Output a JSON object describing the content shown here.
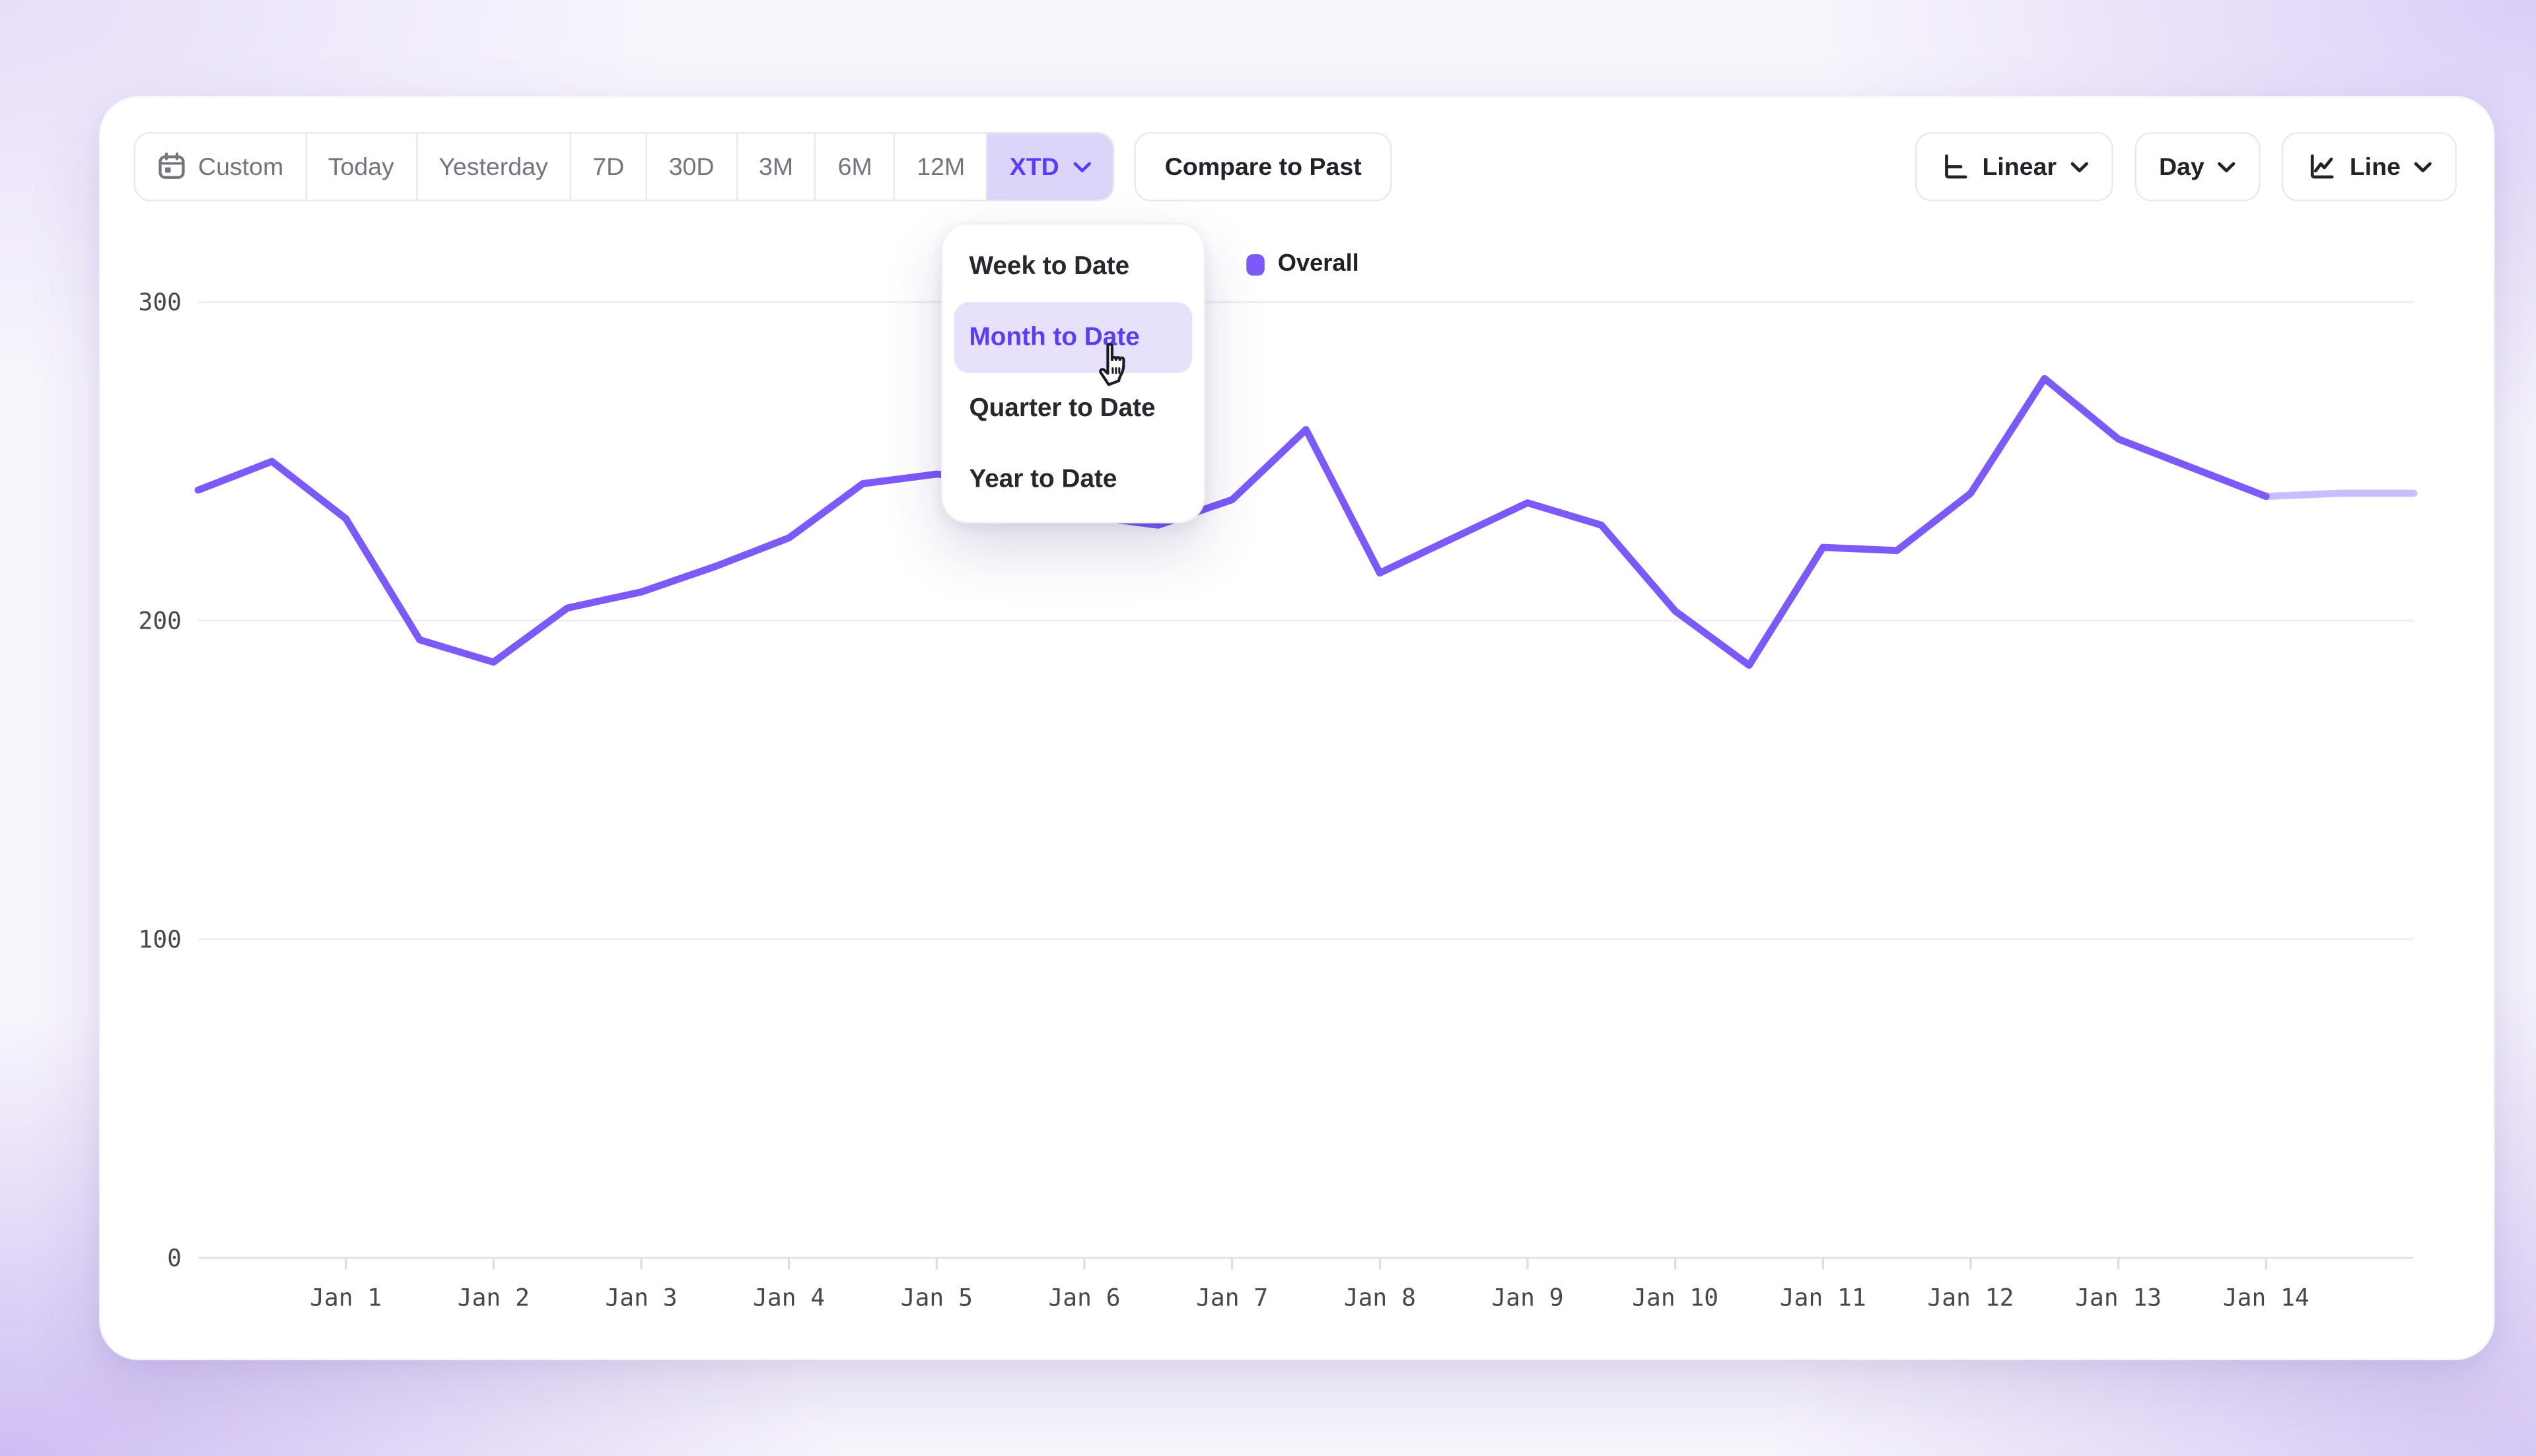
{
  "colors": {
    "accent": "#7b5af9",
    "accent_strong": "#5b3df2",
    "selected_preset_bg": "#ddd4f9",
    "menu_highlight_bg": "#e8e1fc",
    "grid": "#efeff3",
    "axis": "#e4e4ea",
    "tick": "#dcdce2",
    "tick_text": "#47474f",
    "muted_text": "#74747e",
    "dark_text": "#222228",
    "card_bg": "#ffffff"
  },
  "toolbar": {
    "date_presets": [
      "Custom",
      "Today",
      "Yesterday",
      "7D",
      "30D",
      "3M",
      "6M",
      "12M",
      "XTD"
    ],
    "selected_preset": "XTD",
    "compare_label": "Compare to Past",
    "scale_label": "Linear",
    "granularity_label": "Day",
    "chart_type_label": "Line"
  },
  "dropdown": {
    "items": [
      "Week to Date",
      "Month to Date",
      "Quarter to Date",
      "Year to Date"
    ],
    "highlighted_index": 1
  },
  "legend": {
    "label": "Overall"
  },
  "chart_data": {
    "type": "line",
    "title": "",
    "xlabel": "",
    "ylabel": "",
    "ylim": [
      0,
      300
    ],
    "y_ticks": [
      0,
      100,
      200,
      300
    ],
    "grid": "horizontal",
    "legend_position": "top-center",
    "x_tick_labels": [
      "Jan 1",
      "Jan 2",
      "Jan 3",
      "Jan 4",
      "Jan 5",
      "Jan 6",
      "Jan 7",
      "Jan 8",
      "Jan 9",
      "Jan 10",
      "Jan 11",
      "Jan 12",
      "Jan 13",
      "Jan 14"
    ],
    "x_tick_point_indices": [
      2,
      4,
      6,
      8,
      10,
      12,
      14,
      16,
      18,
      20,
      22,
      24,
      26,
      28
    ],
    "points_per_day": 2,
    "series": [
      {
        "name": "Overall",
        "color": "#7b5af9",
        "faded_from_index": 28,
        "values": [
          241,
          250,
          232,
          194,
          187,
          204,
          209,
          217,
          226,
          243,
          246,
          244,
          233,
          230,
          238,
          260,
          215,
          226,
          237,
          230,
          203,
          186,
          223,
          222,
          240,
          276,
          257,
          248,
          239,
          240,
          240
        ]
      }
    ]
  }
}
